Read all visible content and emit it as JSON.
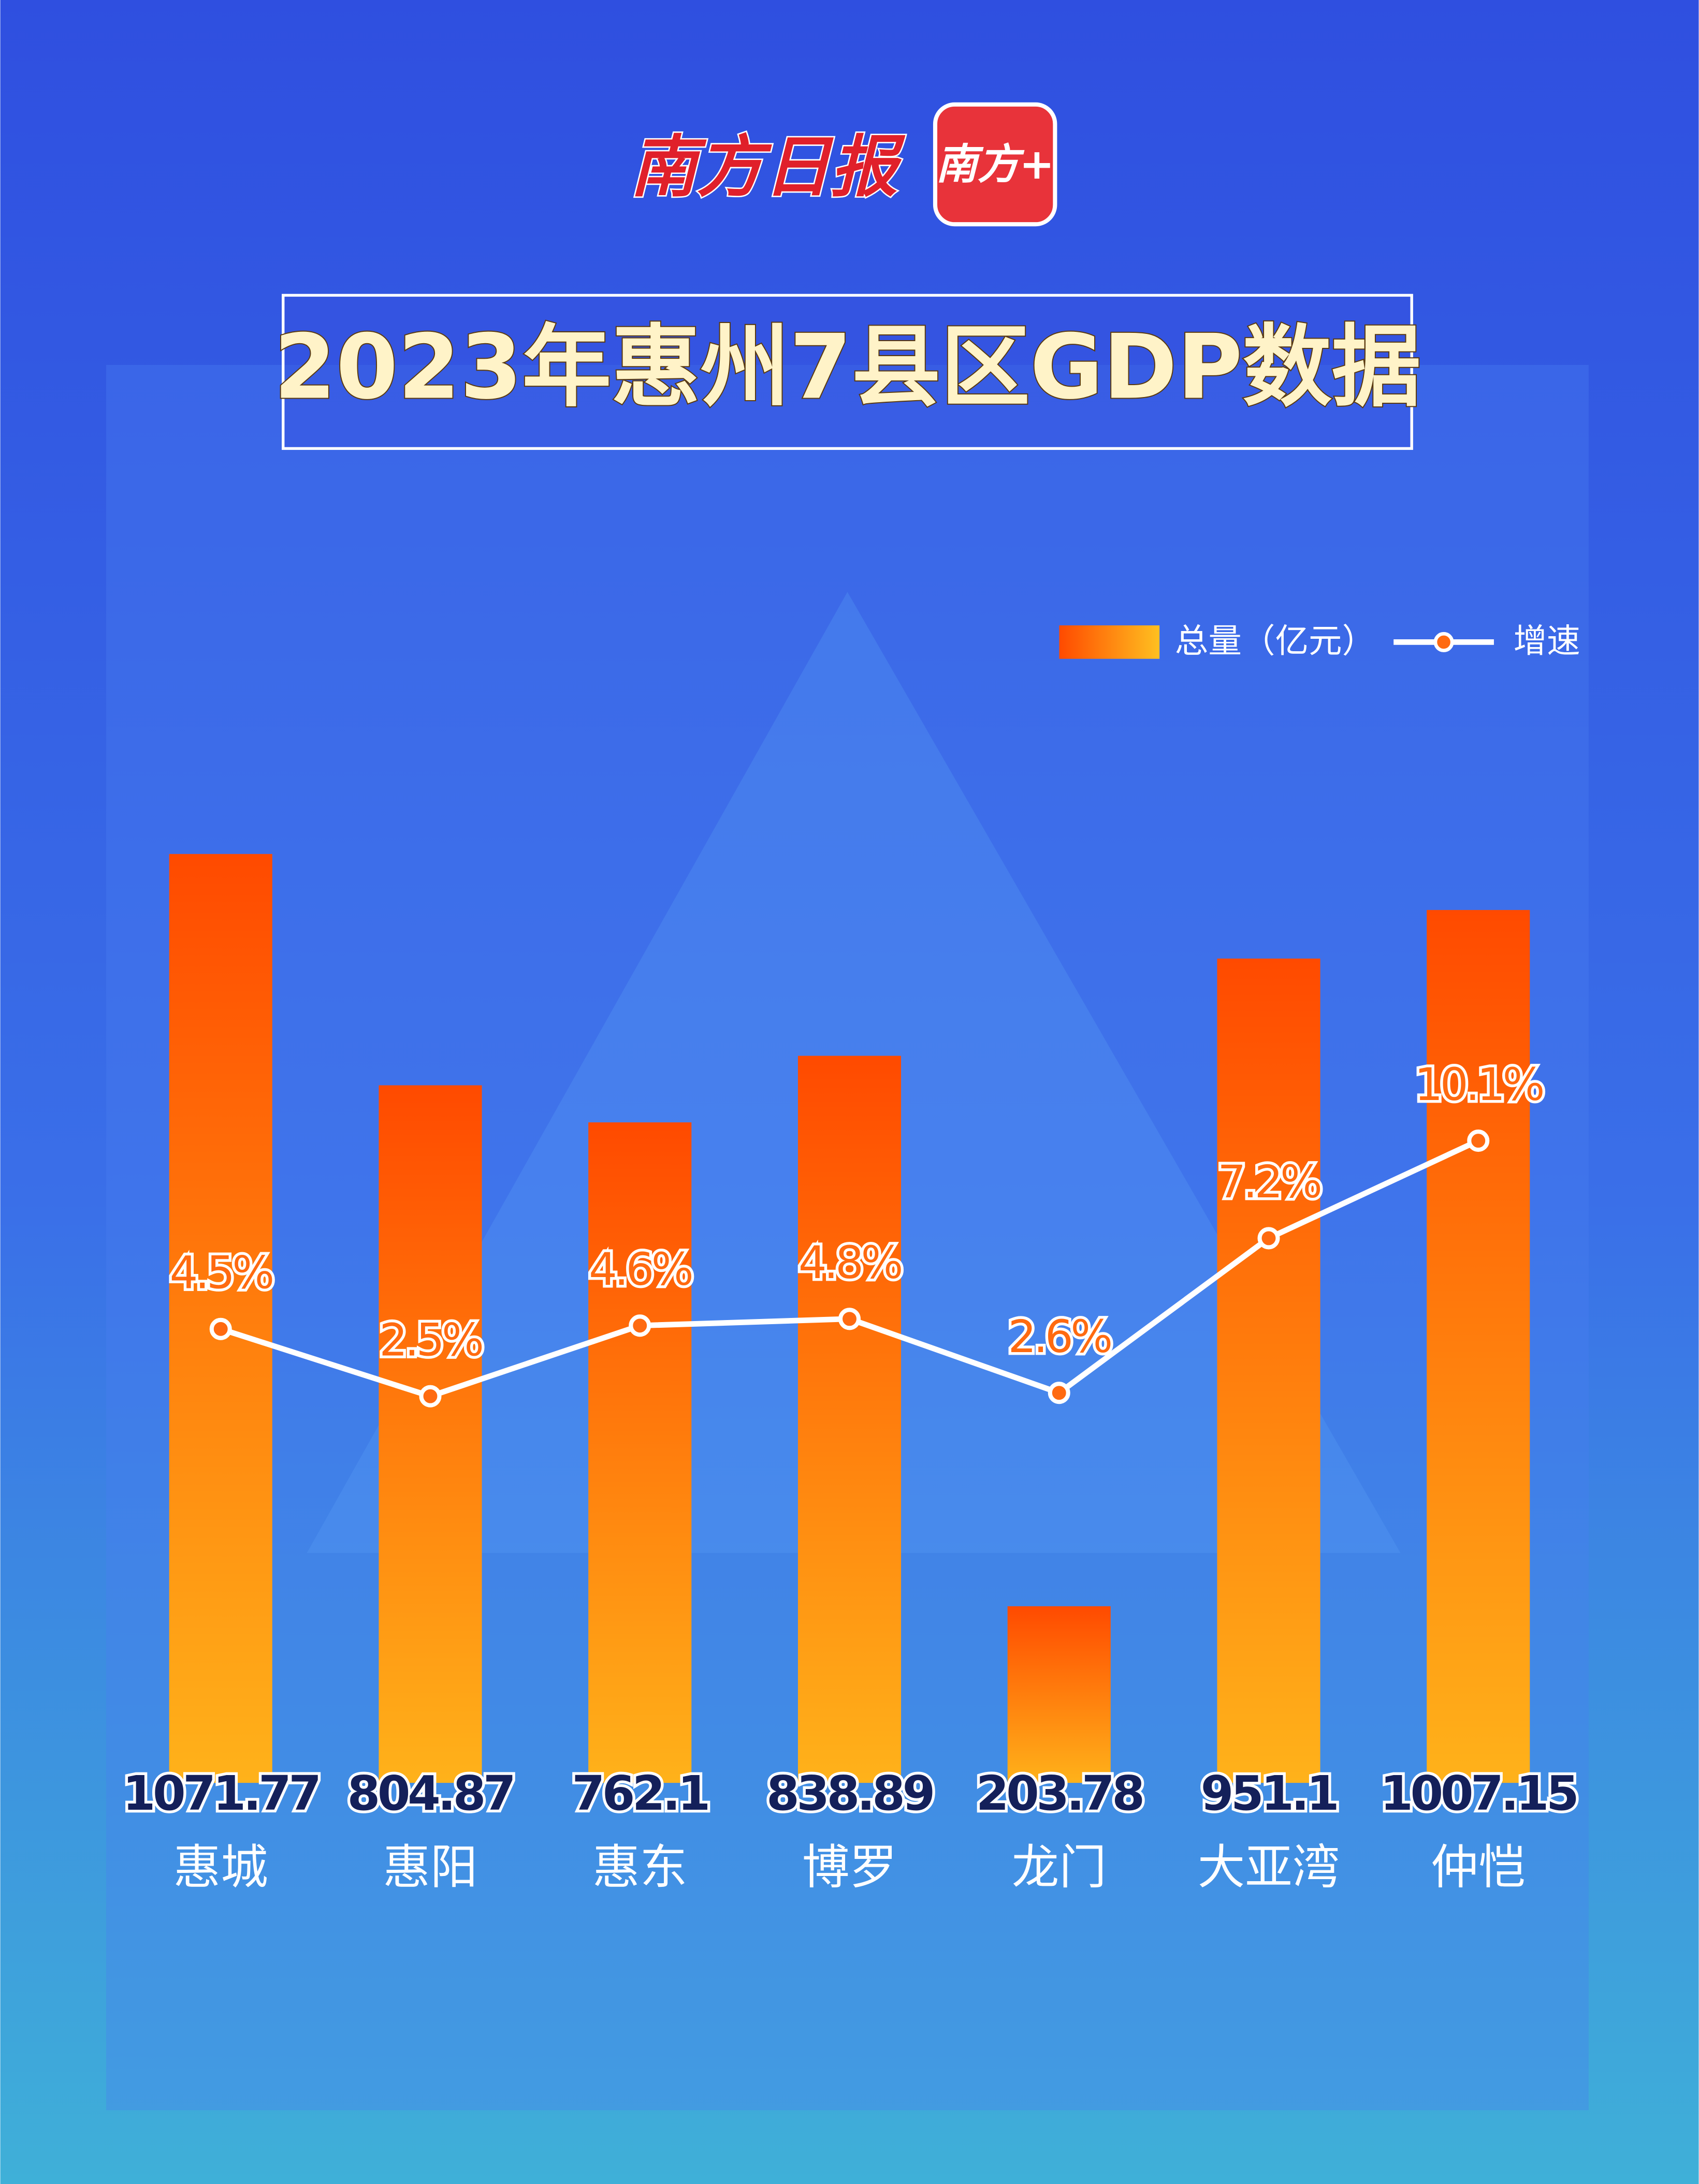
{
  "header": {
    "brand": "南方日报",
    "app": "南方+"
  },
  "chart_data": {
    "type": "bar",
    "title": "2023年惠州7县区GDP数据",
    "categories": [
      "惠城",
      "惠阳",
      "惠东",
      "博罗",
      "龙门",
      "大亚湾",
      "仲恺"
    ],
    "series": [
      {
        "name": "总量（亿元）",
        "type": "bar",
        "color": "#ff7410",
        "values": [
          1071.77,
          804.87,
          762.1,
          838.89,
          203.78,
          951.1,
          1007.15
        ]
      },
      {
        "name": "增速",
        "type": "line",
        "axis": "y2",
        "color": "#ffffff",
        "values": [
          4.5,
          2.5,
          4.6,
          4.8,
          2.6,
          7.2,
          10.1
        ],
        "value_labels": [
          "4.5%",
          "2.5%",
          "4.6%",
          "4.8%",
          "2.6%",
          "7.2%",
          "10.1%"
        ]
      }
    ],
    "ylim": [
      0,
      1125
    ],
    "y2lim": [
      -9,
      20
    ],
    "legend": "top-right"
  }
}
